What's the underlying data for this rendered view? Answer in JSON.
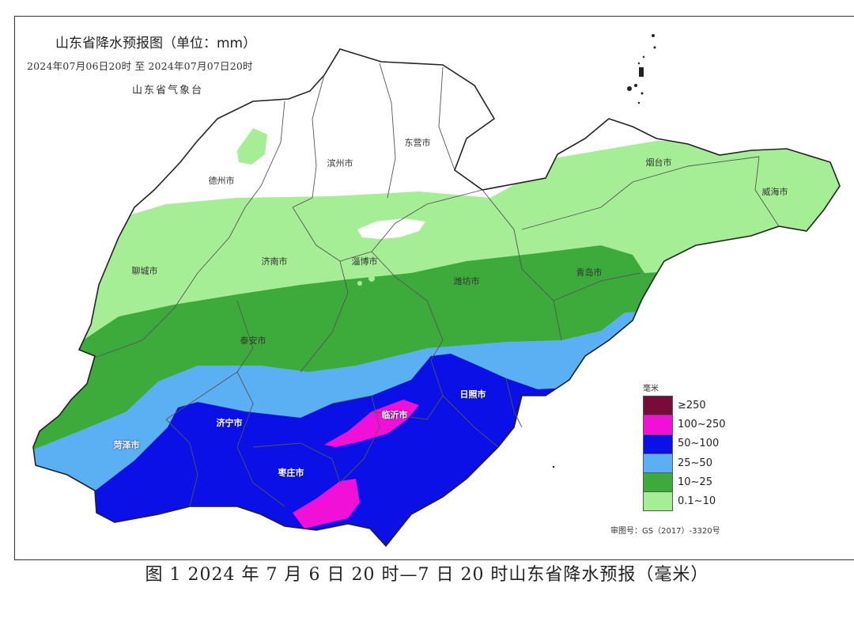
{
  "map": {
    "title": "山东省降水预报图（单位：mm）",
    "period": "2024年07月06日20时  至  2024年07月07日20时",
    "agency": "山东省气象台",
    "cities": [
      {
        "name": "德州市",
        "tone": "dark"
      },
      {
        "name": "滨州市",
        "tone": "dark"
      },
      {
        "name": "东营市",
        "tone": "dark"
      },
      {
        "name": "烟台市",
        "tone": "dark"
      },
      {
        "name": "威海市",
        "tone": "dark"
      },
      {
        "name": "聊城市",
        "tone": "dark"
      },
      {
        "name": "济南市",
        "tone": "dark"
      },
      {
        "name": "淄博市",
        "tone": "dark"
      },
      {
        "name": "潍坊市",
        "tone": "dark"
      },
      {
        "name": "青岛市",
        "tone": "dark"
      },
      {
        "name": "泰安市",
        "tone": "dark"
      },
      {
        "name": "日照市",
        "tone": "light"
      },
      {
        "name": "临沂市",
        "tone": "light"
      },
      {
        "name": "济宁市",
        "tone": "light"
      },
      {
        "name": "菏泽市",
        "tone": "light"
      },
      {
        "name": "枣庄市",
        "tone": "light"
      }
    ],
    "review_no": "审图号：GS（2017）-3320号"
  },
  "legend": {
    "unit": "毫米",
    "items": [
      {
        "label": "≥250",
        "color": "#7a0a3a"
      },
      {
        "label": "100~250",
        "color": "#f010d8"
      },
      {
        "label": "50~100",
        "color": "#0a10e6"
      },
      {
        "label": "25~50",
        "color": "#5ab0f2"
      },
      {
        "label": "10~25",
        "color": "#3cab3c"
      },
      {
        "label": "0.1~10",
        "color": "#a6ee96"
      }
    ]
  },
  "caption": "图 1 2024 年 7 月 6 日 20 时—7 日 20 时山东省降水预报（毫米）"
}
